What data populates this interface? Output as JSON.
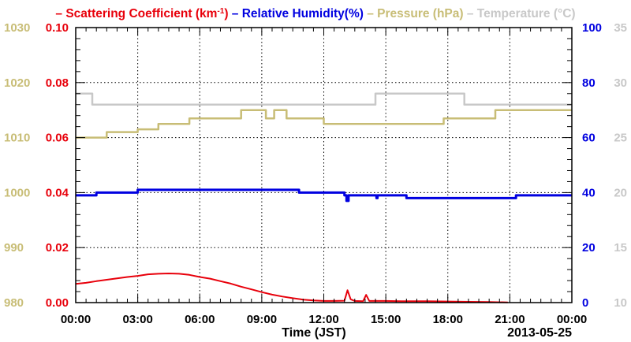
{
  "legend": [
    {
      "label": "Scattering Coefficient (km",
      "sup": "-1",
      "tail": ")",
      "color": "#e8000b"
    },
    {
      "label": "Relative Humidity(%)",
      "color": "#0000e0"
    },
    {
      "label": "Pressure (hPa)",
      "color": "#c8bd76"
    },
    {
      "label": "Temperature (°C)",
      "color": "#c8c8c8"
    }
  ],
  "date_label": "2013-05-25",
  "chart_data": {
    "type": "line",
    "xlabel": "Time (JST)",
    "x_ticks": [
      "00:00",
      "03:00",
      "06:00",
      "09:00",
      "12:00",
      "15:00",
      "18:00",
      "21:00",
      "00:00"
    ],
    "xlim": [
      0,
      24
    ],
    "grid": true,
    "axes": {
      "pressure": {
        "side": "left-outer",
        "color": "#c8bd76",
        "lim": [
          980,
          1030
        ],
        "ticks": [
          "980",
          "990",
          "1000",
          "1010",
          "1020",
          "1030"
        ]
      },
      "scattering": {
        "side": "left-inner",
        "color": "#e8000b",
        "lim": [
          0,
          0.1
        ],
        "ticks": [
          "0.00",
          "0.02",
          "0.04",
          "0.06",
          "0.08",
          "0.10"
        ]
      },
      "humidity": {
        "side": "right-inner",
        "color": "#0000e0",
        "lim": [
          0,
          100
        ],
        "ticks": [
          "0",
          "20",
          "40",
          "60",
          "80",
          "100"
        ]
      },
      "temperature": {
        "side": "right-outer",
        "color": "#c8c8c8",
        "lim": [
          10,
          35
        ],
        "ticks": [
          "10",
          "15",
          "20",
          "25",
          "30",
          "35"
        ]
      }
    },
    "series": [
      {
        "name": "Scattering Coefficient (km-1)",
        "axis": "scattering",
        "color": "#e8000b",
        "step": false,
        "points": [
          [
            0,
            0.0068
          ],
          [
            0.5,
            0.0072
          ],
          [
            1,
            0.0078
          ],
          [
            1.5,
            0.0083
          ],
          [
            2,
            0.0088
          ],
          [
            2.5,
            0.0093
          ],
          [
            3,
            0.0097
          ],
          [
            3.5,
            0.0103
          ],
          [
            4,
            0.0105
          ],
          [
            4.5,
            0.0106
          ],
          [
            5,
            0.0105
          ],
          [
            5.5,
            0.0101
          ],
          [
            6,
            0.0093
          ],
          [
            6.5,
            0.0087
          ],
          [
            7,
            0.0078
          ],
          [
            7.5,
            0.0069
          ],
          [
            8,
            0.0058
          ],
          [
            8.5,
            0.0048
          ],
          [
            9,
            0.0038
          ],
          [
            9.5,
            0.0029
          ],
          [
            10,
            0.0022
          ],
          [
            10.5,
            0.0016
          ],
          [
            11,
            0.0011
          ],
          [
            11.5,
            0.0008
          ],
          [
            12,
            0.0006
          ],
          [
            12.5,
            0.0006
          ],
          [
            13,
            0.0007
          ],
          [
            13.15,
            0.0045
          ],
          [
            13.3,
            0.0012
          ],
          [
            13.5,
            0.0006
          ],
          [
            13.9,
            0.0005
          ],
          [
            14.05,
            0.0028
          ],
          [
            14.2,
            0.0006
          ],
          [
            15,
            0.0006
          ],
          [
            16,
            0.0005
          ],
          [
            17,
            0.0005
          ],
          [
            18,
            0.0004
          ],
          [
            19,
            0.0003
          ],
          [
            20,
            0.0002
          ],
          [
            20.9,
            0.0001
          ]
        ]
      },
      {
        "name": "Relative Humidity(%)",
        "axis": "humidity",
        "color": "#0000e0",
        "step": true,
        "points": [
          [
            0,
            39
          ],
          [
            1,
            40
          ],
          [
            3,
            41
          ],
          [
            10.8,
            40
          ],
          [
            13,
            39
          ],
          [
            13.1,
            37
          ],
          [
            13.2,
            39
          ],
          [
            14.5,
            39
          ],
          [
            14.55,
            38
          ],
          [
            14.6,
            39
          ],
          [
            16,
            38
          ],
          [
            21.3,
            39
          ],
          [
            24,
            39
          ]
        ]
      },
      {
        "name": "Pressure (hPa)",
        "axis": "pressure",
        "color": "#c8bd76",
        "step": true,
        "points": [
          [
            0,
            1010
          ],
          [
            1.5,
            1011
          ],
          [
            3,
            1011.5
          ],
          [
            4,
            1012.5
          ],
          [
            5.5,
            1013.5
          ],
          [
            8,
            1013.5
          ],
          [
            8,
            1015
          ],
          [
            9.2,
            1015
          ],
          [
            9.2,
            1013.5
          ],
          [
            9.6,
            1013.5
          ],
          [
            9.6,
            1015
          ],
          [
            10.2,
            1015
          ],
          [
            10.2,
            1013.5
          ],
          [
            12,
            1013.5
          ],
          [
            12,
            1012.5
          ],
          [
            17.8,
            1012.5
          ],
          [
            17.8,
            1013.5
          ],
          [
            20.3,
            1013.5
          ],
          [
            20.3,
            1015
          ],
          [
            24,
            1015
          ]
        ]
      },
      {
        "name": "Temperature (°C)",
        "axis": "temperature",
        "color": "#c8c8c8",
        "step": true,
        "points": [
          [
            0,
            29
          ],
          [
            0.8,
            29
          ],
          [
            0.8,
            28
          ],
          [
            14.5,
            28
          ],
          [
            14.5,
            29
          ],
          [
            18.8,
            29
          ],
          [
            18.8,
            28
          ],
          [
            24,
            28
          ]
        ]
      }
    ]
  }
}
